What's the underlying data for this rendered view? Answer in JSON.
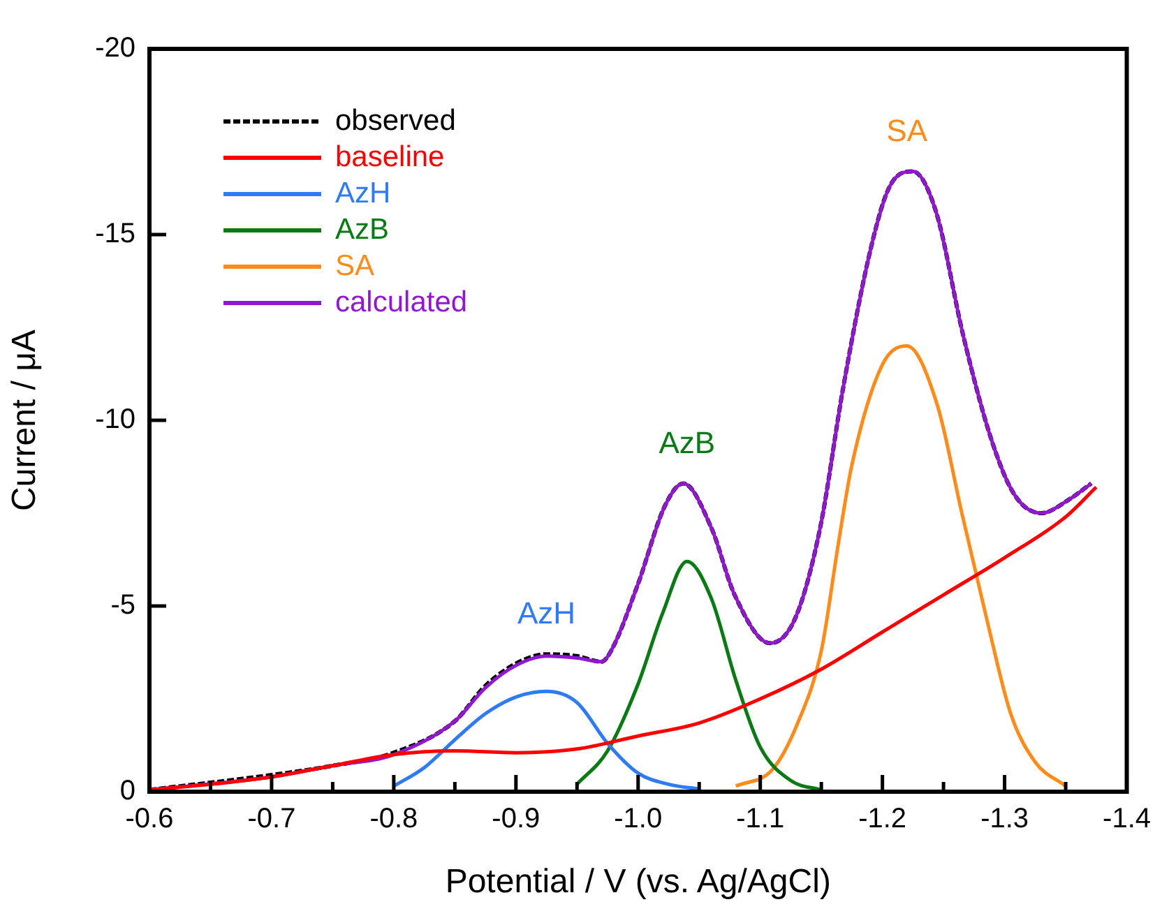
{
  "chart_data": {
    "type": "line",
    "xlabel": "Potential / V (vs. Ag/AgCl)",
    "ylabel": "Current / μA",
    "xlim": [
      -0.6,
      -1.4
    ],
    "ylim": [
      0,
      -20
    ],
    "xticks": [
      -0.6,
      {
        "value": -0.65,
        "label": null
      },
      -0.7,
      {
        "value": -0.75,
        "label": null
      },
      -0.8,
      {
        "value": -0.85,
        "label": null
      },
      -0.9,
      {
        "value": -0.95,
        "label": null
      },
      {
        "value": -1,
        "label": "-1.0"
      },
      {
        "value": -1.05,
        "label": null
      },
      -1.1,
      {
        "value": -1.15,
        "label": null
      },
      -1.2,
      {
        "value": -1.25,
        "label": null
      },
      -1.3,
      {
        "value": -1.35,
        "label": null
      },
      -1.4
    ],
    "yticks": [
      0,
      -5,
      -10,
      -15,
      -20
    ],
    "grid": false,
    "legend": "top left",
    "marker": "none",
    "series": [
      {
        "name": "observed",
        "color": "#000000",
        "line_style": "dashed",
        "x": [
          -0.6,
          -0.7,
          -0.75,
          -0.8,
          -0.85,
          -0.875,
          -0.9,
          -0.925,
          -0.95,
          -0.97,
          -0.978,
          -1.0,
          -1.022,
          -1.037,
          -1.06,
          -1.079,
          -1.108,
          -1.129,
          -1.149,
          -1.168,
          -1.191,
          -1.206,
          -1.225,
          -1.244,
          -1.266,
          -1.289,
          -1.308,
          -1.33,
          -1.352,
          -1.371
        ],
        "values": [
          -0.05,
          -0.45,
          -0.7,
          -1.05,
          -1.9,
          -2.85,
          -3.45,
          -3.7,
          -3.65,
          -3.5,
          -3.8,
          -5.6,
          -7.7,
          -8.3,
          -7.1,
          -5.3,
          -4.0,
          -4.7,
          -7.1,
          -10.9,
          -14.7,
          -16.3,
          -16.7,
          -15.6,
          -12.3,
          -9.5,
          -8.0,
          -7.5,
          -7.85,
          -8.3
        ]
      },
      {
        "name": "baseline",
        "color": "#ff0000",
        "x": [
          -0.6,
          -0.65,
          -0.7,
          -0.75,
          -0.8,
          -0.85,
          -0.9,
          -0.95,
          -1.0,
          -1.05,
          -1.1,
          -1.15,
          -1.2,
          -1.25,
          -1.3,
          -1.35,
          -1.375
        ],
        "values": [
          -0.05,
          -0.2,
          -0.4,
          -0.7,
          -1.0,
          -1.1,
          -1.05,
          -1.15,
          -1.5,
          -1.85,
          -2.5,
          -3.3,
          -4.3,
          -5.3,
          -6.3,
          -7.4,
          -8.2
        ]
      },
      {
        "name": "AzH",
        "color": "#2f7bf5",
        "x": [
          -0.8,
          -0.825,
          -0.85,
          -0.875,
          -0.9,
          -0.925,
          -0.95,
          -0.975,
          -1.0,
          -1.025,
          -1.05
        ],
        "values": [
          -0.15,
          -0.65,
          -1.4,
          -2.1,
          -2.55,
          -2.7,
          -2.4,
          -1.3,
          -0.5,
          -0.2,
          -0.07
        ]
      },
      {
        "name": "AzB",
        "color": "#0a7a14",
        "x": [
          -0.95,
          -0.975,
          -1.0,
          -1.02,
          -1.04,
          -1.06,
          -1.08,
          -1.1,
          -1.125,
          -1.15
        ],
        "values": [
          -0.2,
          -1.1,
          -2.9,
          -4.8,
          -6.2,
          -5.2,
          -3.0,
          -1.2,
          -0.3,
          -0.05
        ]
      },
      {
        "name": "SA",
        "color": "#ff8c1a",
        "x": [
          -1.08,
          -1.11,
          -1.13,
          -1.15,
          -1.164,
          -1.175,
          -1.2,
          -1.22,
          -1.245,
          -1.265,
          -1.285,
          -1.305,
          -1.325,
          -1.35
        ],
        "values": [
          -0.15,
          -0.6,
          -1.8,
          -3.8,
          -6.7,
          -8.8,
          -11.5,
          -12.0,
          -10.4,
          -7.5,
          -4.7,
          -2.1,
          -0.8,
          -0.15
        ]
      },
      {
        "name": "calculated",
        "color": "#9118d0",
        "x": [
          -0.6,
          -0.7,
          -0.75,
          -0.8,
          -0.85,
          -0.875,
          -0.9,
          -0.925,
          -0.95,
          -0.97,
          -0.978,
          -1.0,
          -1.022,
          -1.037,
          -1.06,
          -1.079,
          -1.108,
          -1.129,
          -1.149,
          -1.168,
          -1.191,
          -1.206,
          -1.225,
          -1.244,
          -1.266,
          -1.289,
          -1.308,
          -1.33,
          -1.352,
          -1.371
        ],
        "values": [
          -0.05,
          -0.4,
          -0.7,
          -1.0,
          -1.9,
          -2.8,
          -3.4,
          -3.65,
          -3.6,
          -3.5,
          -3.8,
          -5.6,
          -7.7,
          -8.3,
          -7.1,
          -5.3,
          -4.0,
          -4.7,
          -7.1,
          -10.9,
          -14.7,
          -16.3,
          -16.7,
          -15.6,
          -12.3,
          -9.5,
          -8.0,
          -7.5,
          -7.85,
          -8.3
        ]
      }
    ],
    "annotations": [
      "AzH",
      "AzB",
      "SA"
    ]
  }
}
